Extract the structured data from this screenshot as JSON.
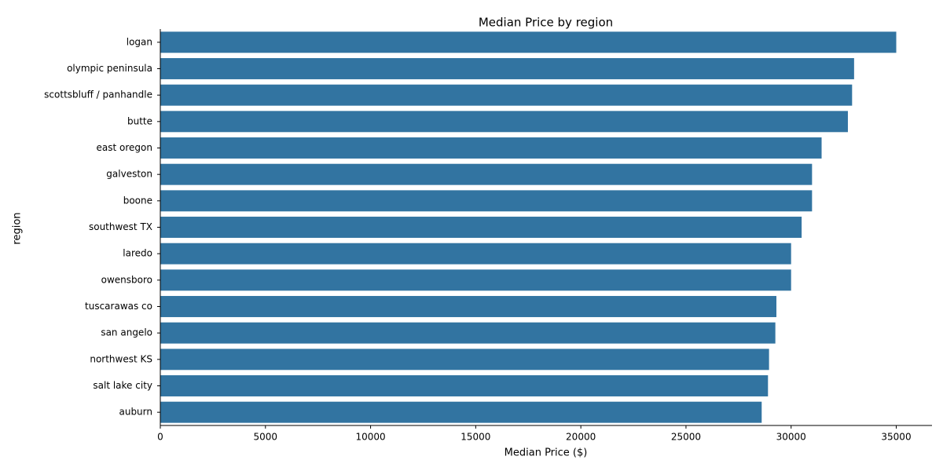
{
  "chart_data": {
    "type": "bar",
    "orientation": "horizontal",
    "title": "Median Price by region",
    "xlabel": "Median Price ($)",
    "ylabel": "region",
    "xlim": [
      0,
      36700
    ],
    "xticks": [
      0,
      5000,
      10000,
      15000,
      20000,
      25000,
      30000,
      35000
    ],
    "xtick_labels": [
      "0",
      "5000",
      "10000",
      "15000",
      "20000",
      "25000",
      "30000",
      "35000"
    ],
    "grid": false,
    "bar_color": "#3274a1",
    "categories": [
      "logan",
      "olympic peninsula",
      "scottsbluff / panhandle",
      "butte",
      "east oregon",
      "galveston",
      "boone",
      "southwest TX",
      "laredo",
      "owensboro",
      "tuscarawas co",
      "san angelo",
      "northwest KS",
      "salt lake city",
      "auburn"
    ],
    "values": [
      35000,
      32995,
      32900,
      32700,
      31450,
      30995,
      30995,
      30500,
      29999,
      29999,
      29300,
      29250,
      28950,
      28900,
      28600
    ]
  }
}
